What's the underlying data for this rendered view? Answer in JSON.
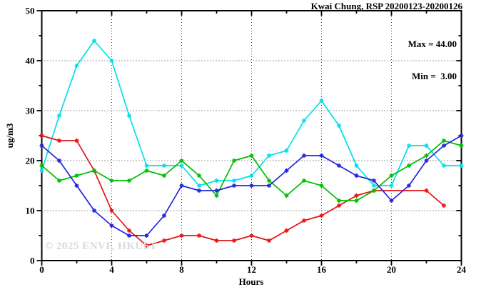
{
  "header": {
    "title": "Kwai Chung, RSP 20200123-20200126"
  },
  "stats_box": {
    "max_label": "Max = 44.00",
    "min_label": "Min =  3.00"
  },
  "watermark": "© 2025 ENVF, HKUST",
  "chart_data": {
    "type": "line",
    "title": "Kwai Chung, RSP 20200123-20200126",
    "xlabel": "Hours",
    "ylabel": "ug/m3",
    "xlim": [
      0,
      24
    ],
    "ylim": [
      0,
      50
    ],
    "x_major_ticks": [
      0,
      4,
      8,
      12,
      16,
      20,
      24
    ],
    "x_minor_ticks": [
      2,
      6,
      10,
      14,
      18,
      22
    ],
    "y_major_ticks": [
      0,
      10,
      20,
      30,
      40,
      50
    ],
    "y_minor_ticks": [
      5,
      15,
      25,
      35,
      45
    ],
    "grid": "dotted-at-major-ticks",
    "legend_position": "none",
    "marker": "asterisk",
    "annotations": {
      "max": 44.0,
      "min": 3.0
    },
    "series": [
      {
        "name": "cyan",
        "color": "#00e0e8",
        "x": [
          0,
          1,
          2,
          3,
          4,
          5,
          6,
          7,
          8,
          9,
          10,
          11,
          12,
          13,
          14,
          15,
          16,
          17,
          18,
          19,
          20,
          21,
          22,
          23,
          24
        ],
        "values": [
          18,
          29,
          39,
          44,
          40,
          29,
          19,
          19,
          19,
          15,
          16,
          16,
          17,
          21,
          22,
          28,
          32,
          27,
          19,
          15,
          15,
          23,
          23,
          19,
          19
        ]
      },
      {
        "name": "red",
        "color": "#e41414",
        "x": [
          0,
          1,
          2,
          3,
          4,
          5,
          6,
          7,
          8,
          9,
          10,
          11,
          12,
          13,
          14,
          15,
          16,
          17,
          18,
          19,
          22,
          23
        ],
        "values": [
          25,
          24,
          24,
          18,
          10,
          6,
          3,
          4,
          5,
          5,
          4,
          4,
          5,
          4,
          6,
          8,
          9,
          11,
          13,
          14,
          14,
          11
        ]
      },
      {
        "name": "green",
        "color": "#00be00",
        "x": [
          0,
          1,
          2,
          3,
          4,
          5,
          6,
          7,
          8,
          9,
          10,
          11,
          12,
          13,
          14,
          15,
          16,
          17,
          18,
          19,
          20,
          21,
          22,
          23,
          24
        ],
        "values": [
          19,
          16,
          17,
          18,
          16,
          16,
          18,
          17,
          20,
          17,
          13,
          20,
          21,
          16,
          13,
          16,
          15,
          12,
          12,
          14,
          17,
          19,
          21,
          24,
          23
        ]
      },
      {
        "name": "blue",
        "color": "#2424d8",
        "x": [
          0,
          1,
          2,
          3,
          4,
          5,
          6,
          7,
          8,
          9,
          10,
          11,
          12,
          13,
          14,
          15,
          16,
          17,
          18,
          19,
          20,
          21,
          22,
          23,
          24
        ],
        "values": [
          23,
          20,
          15,
          10,
          7,
          5,
          5,
          9,
          15,
          14,
          14,
          15,
          15,
          15,
          18,
          21,
          21,
          19,
          17,
          16,
          12,
          15,
          20,
          23,
          25
        ]
      }
    ]
  }
}
